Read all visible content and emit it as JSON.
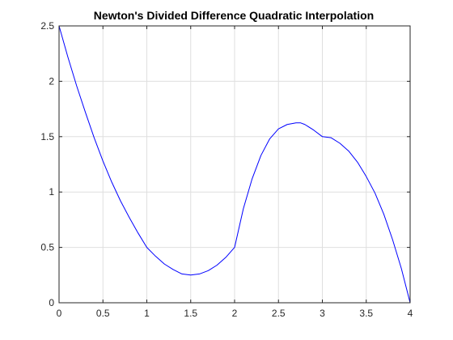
{
  "chart_data": {
    "type": "line",
    "title": "Newton's Divided Difference Quadratic Interpolation",
    "xlabel": "",
    "ylabel": "",
    "xlim": [
      0,
      4
    ],
    "ylim": [
      0,
      2.5
    ],
    "xticks": [
      "0",
      "0.5",
      "1",
      "1.5",
      "2",
      "2.5",
      "3",
      "3.5",
      "4"
    ],
    "yticks": [
      "0",
      "0.5",
      "1",
      "1.5",
      "2",
      "2.5"
    ],
    "grid": true,
    "legend": "none",
    "series": [
      {
        "color": "#0000ff",
        "x": [
          0,
          0.1,
          0.2,
          0.3,
          0.4,
          0.5,
          0.6,
          0.7,
          0.8,
          0.9,
          1.0,
          1.1,
          1.2,
          1.3,
          1.4,
          1.5,
          1.6,
          1.7,
          1.8,
          1.9,
          2.0,
          2.1,
          2.2,
          2.3,
          2.4,
          2.5,
          2.6,
          2.7,
          2.75,
          2.8,
          2.9,
          3.0,
          3.1,
          3.2,
          3.3,
          3.4,
          3.5,
          3.6,
          3.7,
          3.8,
          3.9,
          4.0
        ],
        "y": [
          2.5,
          2.22,
          1.96,
          1.72,
          1.49,
          1.28,
          1.09,
          0.92,
          0.77,
          0.63,
          0.5,
          0.42,
          0.35,
          0.3,
          0.26,
          0.25,
          0.26,
          0.29,
          0.34,
          0.41,
          0.5,
          0.85,
          1.12,
          1.33,
          1.48,
          1.57,
          1.61,
          1.625,
          1.625,
          1.61,
          1.56,
          1.5,
          1.49,
          1.44,
          1.37,
          1.27,
          1.14,
          0.99,
          0.8,
          0.57,
          0.31,
          0.0
        ]
      }
    ]
  }
}
